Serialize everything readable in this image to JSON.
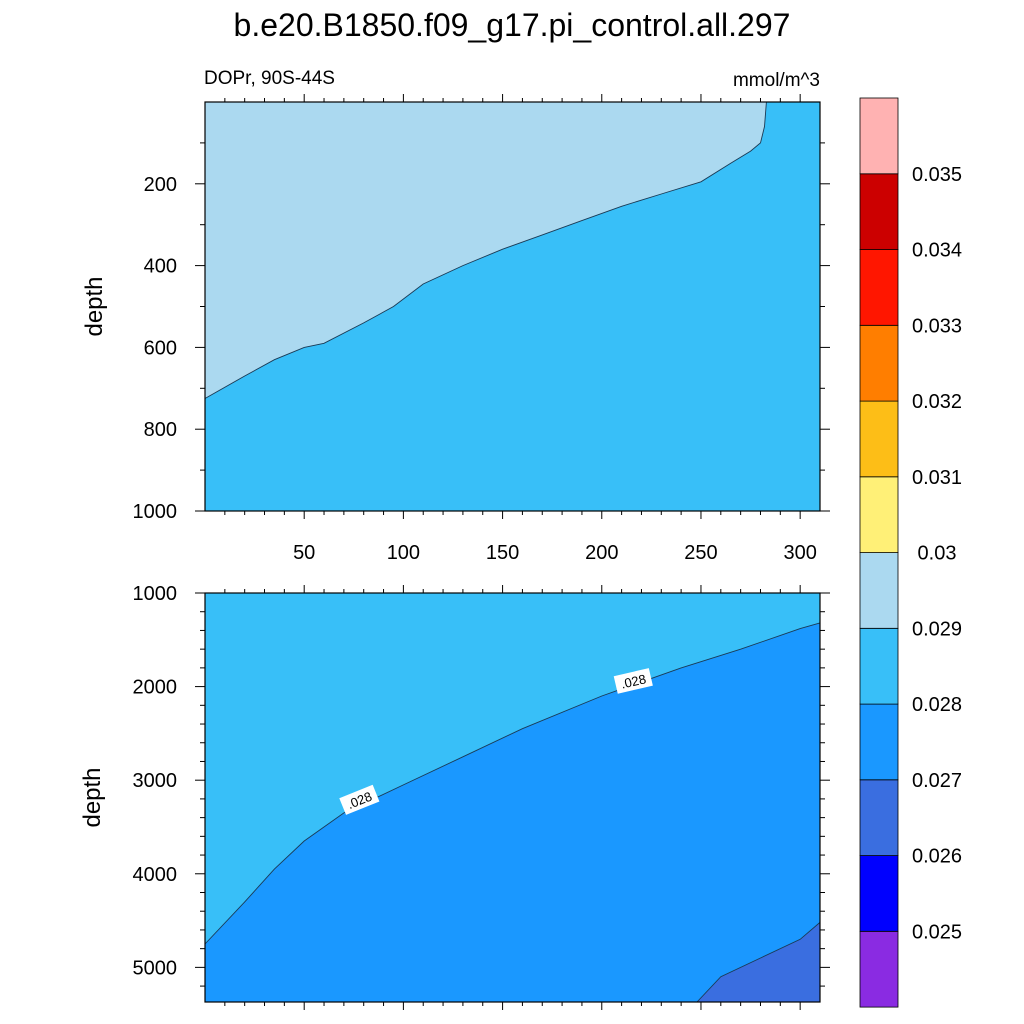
{
  "figure": {
    "title": "b.e20.B1850.f09_g17.pi_control.all.297",
    "left_subtitle": "DOPr, 90S-44S",
    "right_subtitle": "mmol/m^3"
  },
  "colors": {
    "background": "#ffffff",
    "contour_line": "#1a3a55",
    "level_colors": [
      "#8a2be2",
      "#0000ff",
      "#3a6ee0",
      "#1a98ff",
      "#38bff8",
      "#abd9f0",
      "#fff077",
      "#fdbe17",
      "#ff7e00",
      "#ff1600",
      "#cc0000",
      "#ffb2b2"
    ]
  },
  "colorbar": {
    "labels": [
      "0.025",
      "0.026",
      "0.027",
      "0.028",
      "0.029",
      "0.03",
      "0.031",
      "0.032",
      "0.033",
      "0.034",
      "0.035"
    ]
  },
  "chart_data": [
    {
      "type": "heatmap",
      "panel": "upper",
      "title": "",
      "xlabel": "",
      "ylabel": "depth",
      "xlim": [
        0,
        310
      ],
      "ylim": [
        1000,
        0
      ],
      "x_ticks": [
        50,
        100,
        150,
        200,
        250,
        300
      ],
      "y_ticks": [
        200,
        400,
        600,
        800,
        1000
      ],
      "y_ticks_shown": [
        "200",
        "400",
        "600",
        "800",
        "1000"
      ],
      "x_ticks_shown": [
        "50",
        "100",
        "150",
        "200",
        "250",
        "300"
      ],
      "fills": [
        {
          "range": "0.029-0.03",
          "color": "#abd9f0",
          "region": "above boundary (shallow)"
        },
        {
          "range": "0.028-0.029",
          "color": "#38bff8",
          "region": "below boundary (deep)"
        }
      ],
      "contour_0_029": {
        "x": [
          0,
          20,
          35,
          50,
          60,
          80,
          95,
          110,
          130,
          150,
          170,
          190,
          210,
          230,
          250,
          265,
          275,
          280,
          282,
          283
        ],
        "y": [
          725,
          670,
          630,
          600,
          590,
          540,
          500,
          445,
          400,
          360,
          325,
          290,
          255,
          225,
          195,
          150,
          120,
          100,
          60,
          0
        ]
      }
    },
    {
      "type": "heatmap",
      "panel": "lower",
      "title": "",
      "xlabel": "",
      "ylabel": "depth",
      "xlim": [
        0,
        310
      ],
      "ylim": [
        5370,
        1000
      ],
      "y_ticks": [
        1000,
        2000,
        3000,
        4000,
        5000
      ],
      "y_ticks_shown": [
        "1000",
        "2000",
        "3000",
        "4000",
        "5000"
      ],
      "fills": [
        {
          "range": "0.028-0.029",
          "color": "#38bff8",
          "region": "above .028 contour"
        },
        {
          "range": "0.027-0.028",
          "color": "#1a98ff",
          "region": "below .028 contour"
        },
        {
          "range": "0.026-0.027",
          "color": "#3a6ee0",
          "region": "bottom-right corner"
        }
      ],
      "contour_0_028": {
        "x": [
          0,
          20,
          35,
          50,
          70,
          100,
          130,
          160,
          200,
          240,
          270,
          300,
          310
        ],
        "y": [
          4750,
          4300,
          3950,
          3650,
          3350,
          3050,
          2750,
          2450,
          2100,
          1800,
          1600,
          1380,
          1320
        ]
      },
      "contour_0_027": {
        "x": [
          248,
          260,
          280,
          300,
          310
        ],
        "y": [
          5370,
          5100,
          4900,
          4700,
          4520
        ]
      },
      "contour_labels": [
        {
          "text": ".028",
          "x": 78,
          "y": 3220
        },
        {
          "text": ".028",
          "x": 216,
          "y": 1950
        }
      ]
    }
  ]
}
